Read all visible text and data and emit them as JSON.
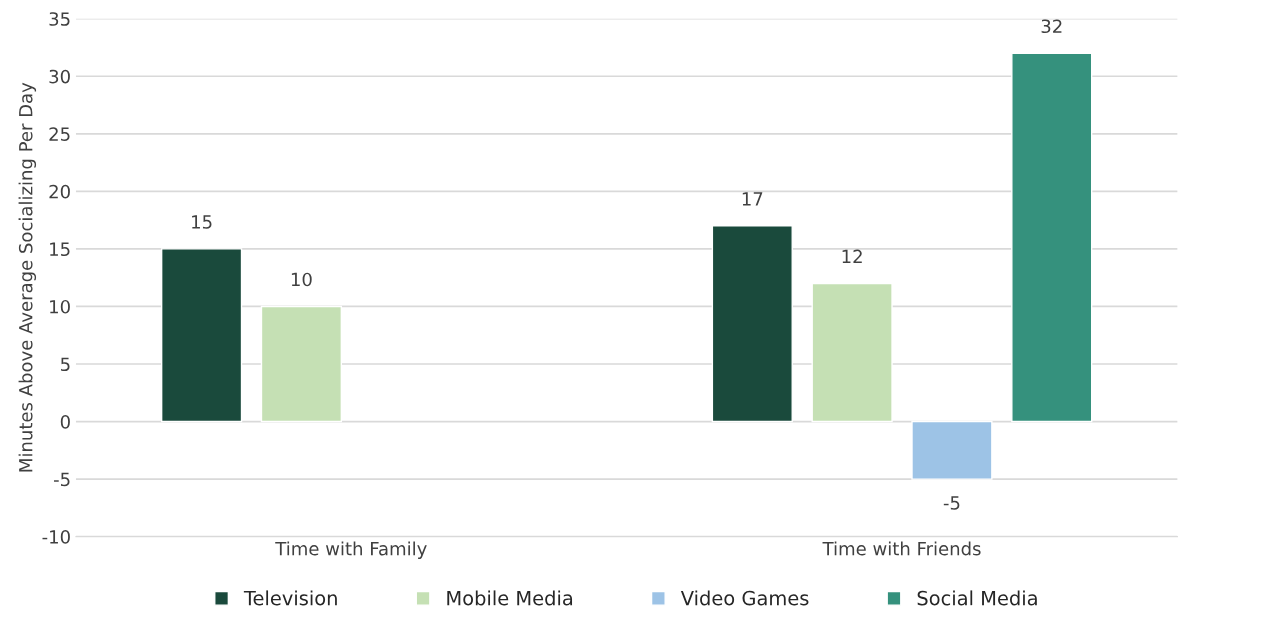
{
  "chart_data": {
    "type": "bar",
    "ylabel": "Minutes Above Average Socializing Per Day",
    "categories": [
      "Time with Family",
      "Time with Friends"
    ],
    "series": [
      {
        "name": "Television",
        "color": "#1a4a3c",
        "values": [
          15,
          17
        ]
      },
      {
        "name": "Mobile Media",
        "color": "#c5e0b4",
        "values": [
          10,
          12
        ]
      },
      {
        "name": "Video Games",
        "color": "#9dc3e6",
        "values": [
          null,
          -5
        ]
      },
      {
        "name": "Social Media",
        "color": "#35917d",
        "values": [
          null,
          32
        ]
      }
    ],
    "ylim": [
      -10,
      35
    ],
    "yticks": [
      -10,
      -5,
      0,
      5,
      10,
      15,
      20,
      25,
      30,
      35
    ],
    "grid": "y",
    "legend": "bottom",
    "data_labels": true
  }
}
